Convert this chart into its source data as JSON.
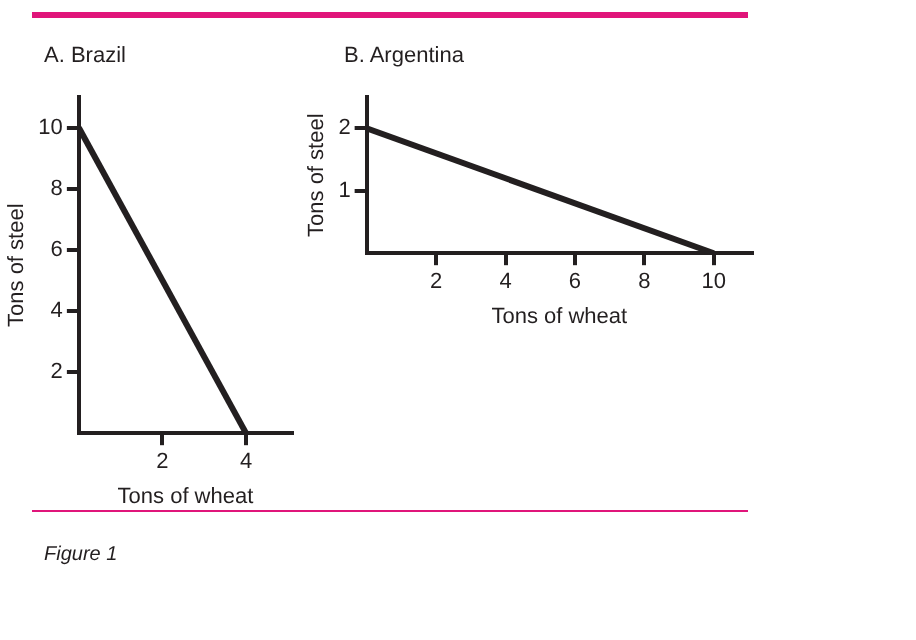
{
  "chart_data": [
    {
      "type": "line",
      "title": "A. Brazil",
      "xlabel": "Tons of wheat",
      "ylabel": "Tons of steel",
      "x": [
        0,
        4
      ],
      "series": [
        {
          "color": "#231f20",
          "values": [
            10,
            0
          ]
        }
      ],
      "xlim": [
        0,
        5.1
      ],
      "xticks": [
        2,
        4
      ],
      "ylim": [
        0,
        11
      ],
      "yticks": [
        2,
        4,
        6,
        8,
        10
      ],
      "grid": false,
      "legend": false,
      "marker": "none",
      "line_style": "solid",
      "annotations": [
        "Figure 1"
      ]
    },
    {
      "type": "line",
      "title": "B. Argentina",
      "xlabel": "Tons of wheat",
      "ylabel": "Tons of steel",
      "x": [
        0,
        10
      ],
      "series": [
        {
          "color": "#231f20",
          "values": [
            2,
            0
          ]
        }
      ],
      "xlim": [
        0,
        11.1
      ],
      "xticks": [
        2,
        4,
        6,
        8,
        10
      ],
      "ylim": [
        0,
        2.5
      ],
      "yticks": [
        1,
        2
      ],
      "grid": false,
      "legend": false,
      "marker": "none",
      "line_style": "solid"
    }
  ]
}
